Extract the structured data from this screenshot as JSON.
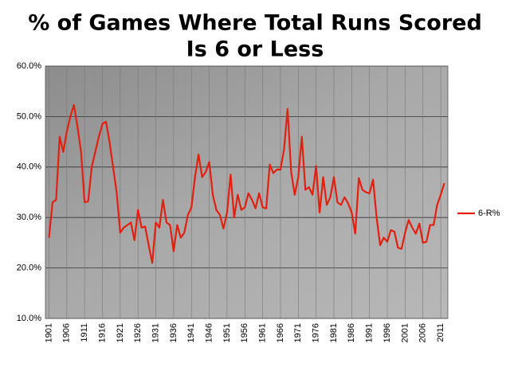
{
  "chart_data": {
    "type": "line",
    "title": [
      "% of Games Where Total Runs Scored",
      "Is 6 or Less"
    ],
    "x": [
      1901,
      1902,
      1903,
      1904,
      1905,
      1906,
      1907,
      1908,
      1909,
      1910,
      1911,
      1912,
      1913,
      1914,
      1915,
      1916,
      1917,
      1918,
      1919,
      1920,
      1921,
      1922,
      1923,
      1924,
      1925,
      1926,
      1927,
      1928,
      1929,
      1930,
      1931,
      1932,
      1933,
      1934,
      1935,
      1936,
      1937,
      1938,
      1939,
      1940,
      1941,
      1942,
      1943,
      1944,
      1945,
      1946,
      1947,
      1948,
      1949,
      1950,
      1951,
      1952,
      1953,
      1954,
      1955,
      1956,
      1957,
      1958,
      1959,
      1960,
      1961,
      1962,
      1963,
      1964,
      1965,
      1966,
      1967,
      1968,
      1969,
      1970,
      1971,
      1972,
      1973,
      1974,
      1975,
      1976,
      1977,
      1978,
      1979,
      1980,
      1981,
      1982,
      1983,
      1984,
      1985,
      1986,
      1987,
      1988,
      1989,
      1990,
      1991,
      1992,
      1993,
      1994,
      1995,
      1996,
      1997,
      1998,
      1999,
      2000,
      2001,
      2002,
      2003,
      2004,
      2005,
      2006,
      2007,
      2008,
      2009,
      2010,
      2011,
      2012
    ],
    "series": [
      {
        "name": "6-R%",
        "color": "#e3200f",
        "values": [
          26,
          33,
          33.5,
          46,
          43,
          47,
          50,
          52.3,
          48,
          43,
          33,
          33.2,
          40,
          43,
          46,
          48.5,
          49,
          45,
          40,
          35,
          27,
          28,
          28.5,
          29,
          25.5,
          31.5,
          28,
          28.2,
          24.5,
          21,
          29,
          28,
          33.5,
          29,
          28.5,
          23.3,
          28.5,
          26,
          27,
          30.5,
          32,
          38,
          42.5,
          38,
          39,
          41,
          34.5,
          31.5,
          30.5,
          27.8,
          31,
          38.5,
          30,
          34.5,
          31.5,
          32,
          34.8,
          33.5,
          31.8,
          34.8,
          32,
          31.8,
          40.5,
          38.8,
          39.5,
          39.5,
          43.5,
          51.5,
          39,
          34.5,
          38,
          46,
          35.5,
          36,
          34.5,
          40.2,
          31,
          38,
          32.5,
          34,
          38,
          33,
          32.5,
          34,
          32.8,
          31,
          26.8,
          37.8,
          35.5,
          35,
          34.8,
          37.5,
          30,
          24.5,
          26,
          25.2,
          27.5,
          27.2,
          24,
          23.8,
          27,
          29.5,
          28,
          26.8,
          28.8,
          25,
          25.2,
          28.5,
          28.5,
          32.5,
          34.5,
          36.8
        ]
      }
    ],
    "xlim": [
      1900,
      2013
    ],
    "xticks": [
      1901,
      1906,
      1911,
      1916,
      1921,
      1926,
      1931,
      1936,
      1941,
      1946,
      1951,
      1956,
      1961,
      1966,
      1971,
      1976,
      1981,
      1986,
      1991,
      1996,
      2001,
      2006,
      2011
    ],
    "ylim": [
      10,
      60
    ],
    "yticks": [
      {
        "value": 10,
        "label": "10.0%"
      },
      {
        "value": 20,
        "label": "20.0%"
      },
      {
        "value": 30,
        "label": "30.0%"
      },
      {
        "value": 40,
        "label": "40.0%"
      },
      {
        "value": 50,
        "label": "50.0%"
      },
      {
        "value": 60,
        "label": "60.0%"
      }
    ],
    "grid": true,
    "legend": "right"
  }
}
